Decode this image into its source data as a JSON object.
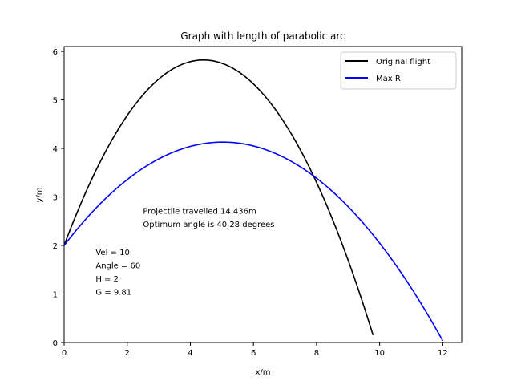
{
  "chart_data": {
    "type": "line",
    "title": "Graph with length of parabolic arc",
    "xlabel": "x/m",
    "ylabel": "y/m",
    "xlim": [
      0,
      12.6
    ],
    "ylim": [
      0,
      6.1
    ],
    "xticks": [
      0,
      2,
      4,
      6,
      8,
      10,
      12
    ],
    "yticks": [
      0,
      1,
      2,
      3,
      4,
      5,
      6
    ],
    "grid": false,
    "legend_position": "top-right",
    "series": [
      {
        "name": "Original flight",
        "color": "#000000",
        "params": {
          "velocity": 10,
          "angle_deg": 60,
          "height": 2,
          "gravity": 9.81
        },
        "x": [
          0,
          1,
          2,
          3,
          4,
          4.414,
          5,
          6,
          7,
          8,
          9,
          9.79
        ],
        "y": [
          2,
          3.533,
          4.674,
          5.423,
          5.78,
          5.803,
          5.745,
          5.318,
          4.499,
          3.287,
          1.684,
          0.12
        ]
      },
      {
        "name": "Max R",
        "color": "#0000ff",
        "params": {
          "velocity": 10,
          "angle_deg": 40.28,
          "height": 2,
          "gravity": 9.81
        },
        "x": [
          0,
          1,
          2,
          3,
          4,
          5,
          6,
          7,
          8,
          9,
          10,
          11,
          12.0
        ],
        "y": [
          2,
          2.764,
          3.358,
          3.782,
          4.036,
          4.12,
          4.035,
          3.779,
          3.353,
          2.758,
          1.993,
          1.058,
          0.047
        ]
      }
    ],
    "annotations": [
      {
        "id": "range",
        "lines": [
          "Projectile travelled 14.436m",
          "Optimum angle is 40.28 degrees"
        ]
      },
      {
        "id": "params",
        "lines": [
          "Vel = 10",
          "Angle = 60",
          "H = 2",
          "G = 9.81"
        ]
      }
    ]
  }
}
